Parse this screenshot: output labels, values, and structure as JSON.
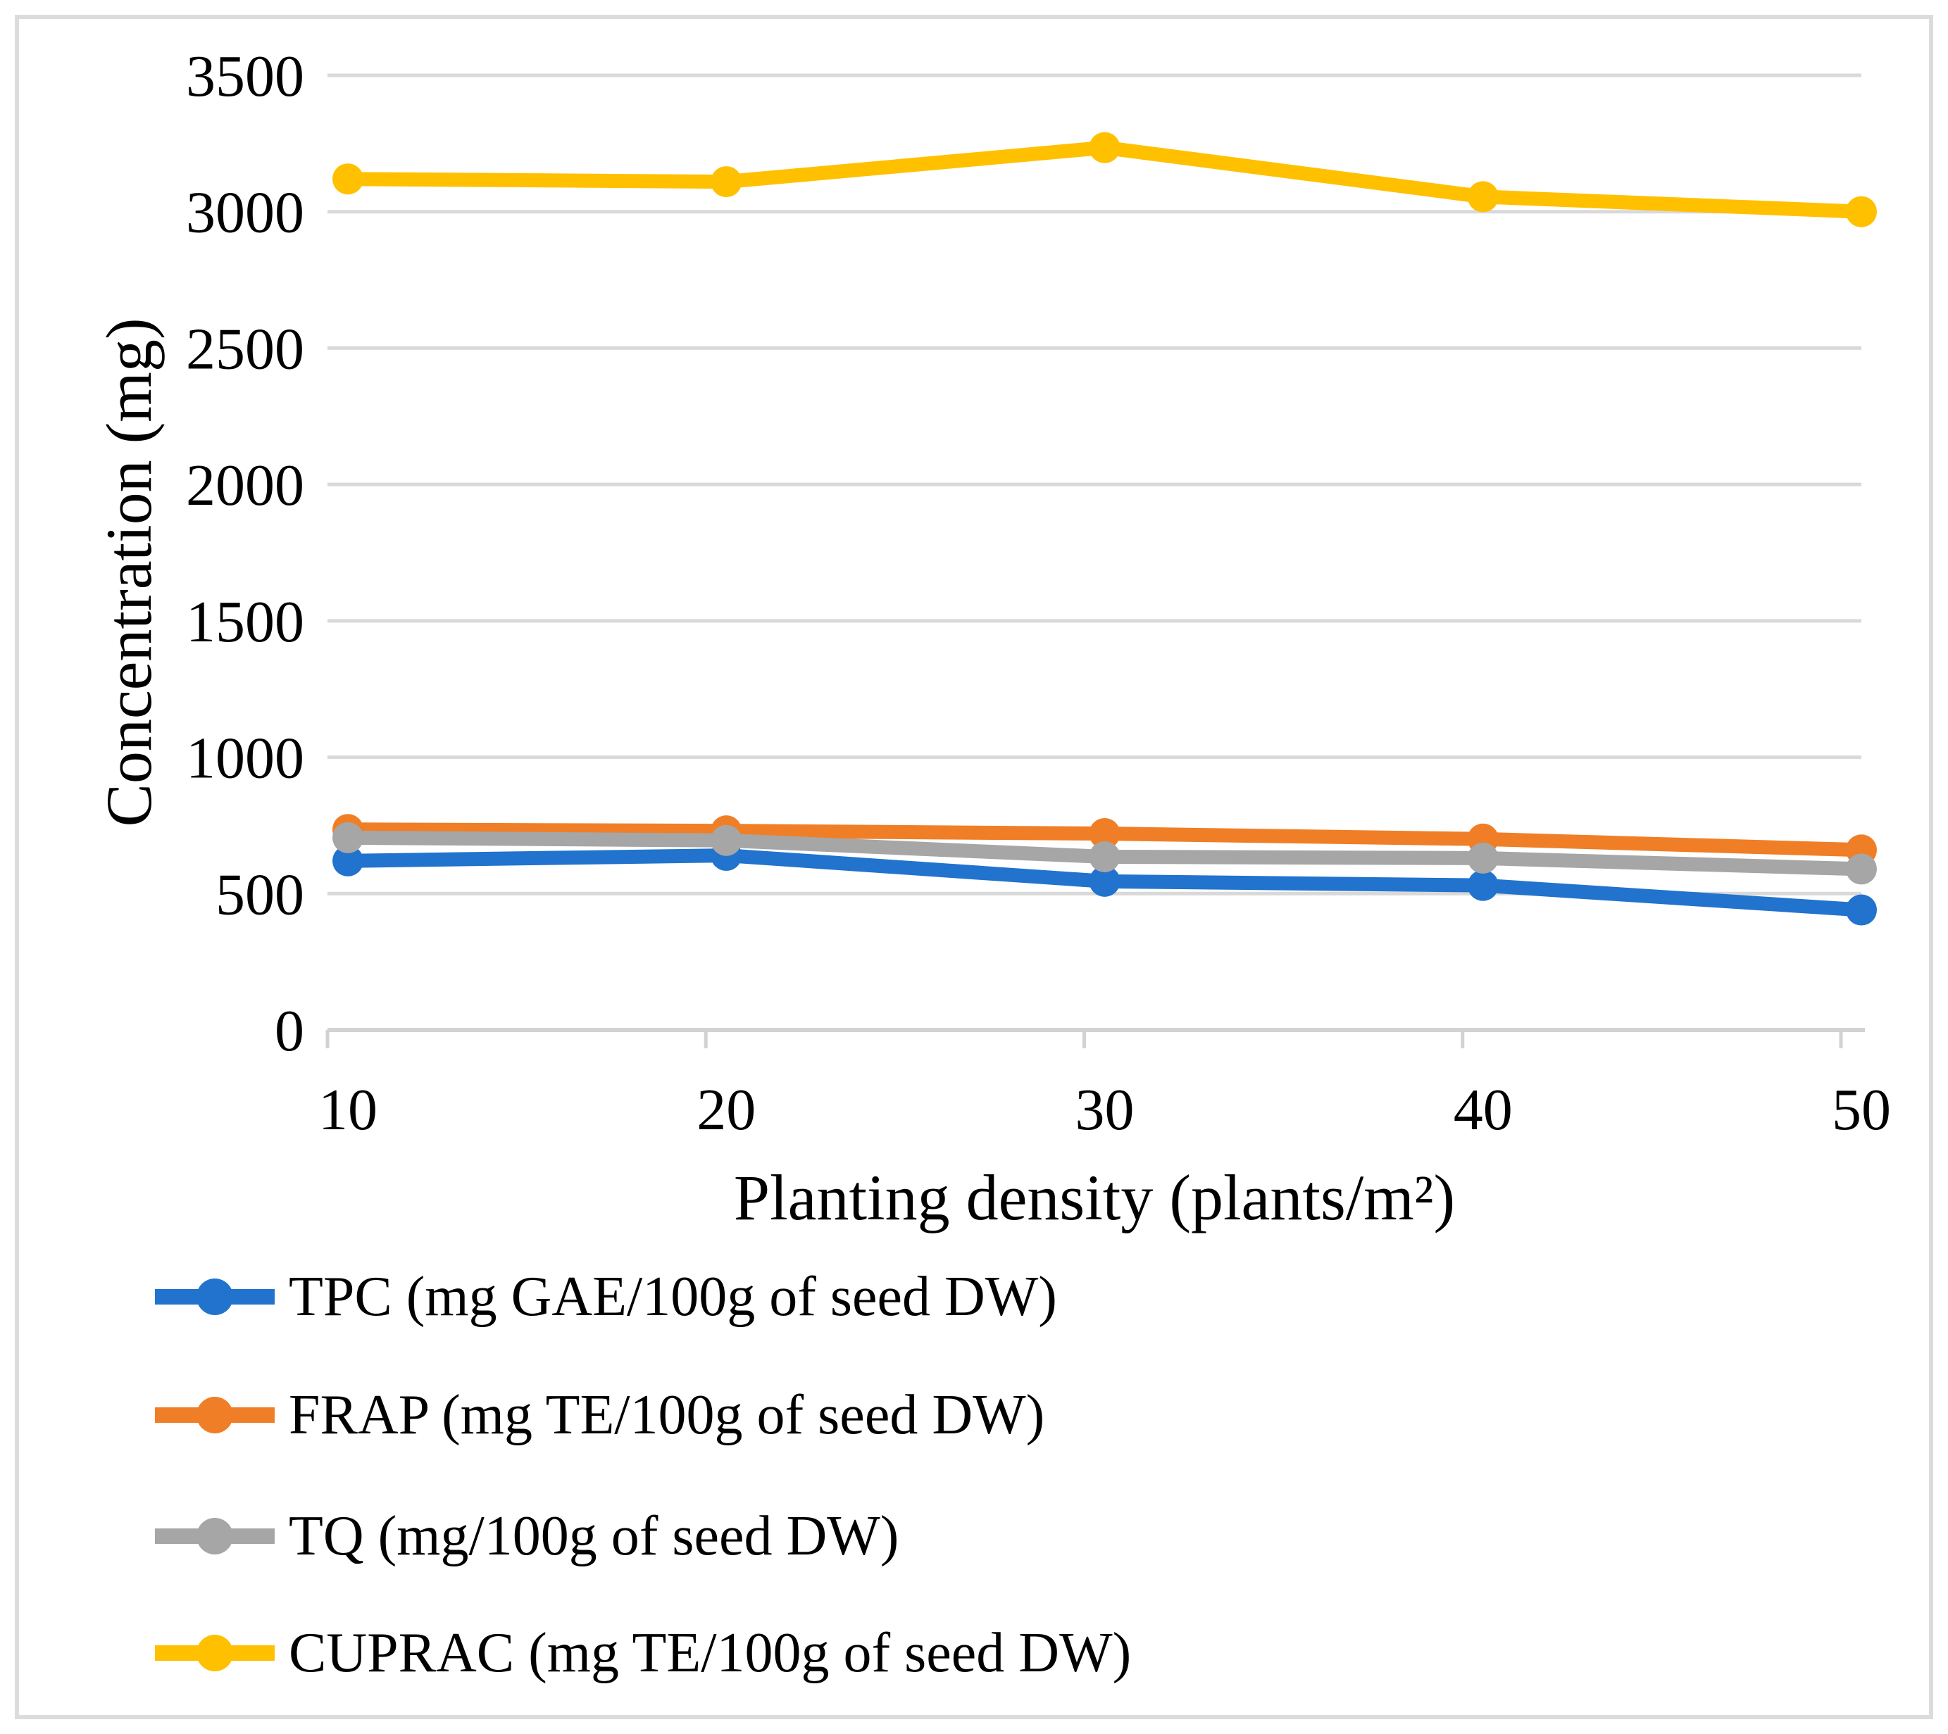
{
  "figure": {
    "background": "#FFFFFF",
    "frame_border_color": "#DCDCDC"
  },
  "chart_data": {
    "type": "line",
    "xlabel": "Planting density (plants/m²)",
    "ylabel": "Concentration (mg)",
    "x": [
      10,
      20,
      30,
      40,
      50
    ],
    "xticks": [
      "10",
      "20",
      "30",
      "40",
      "50"
    ],
    "yticks": [
      "3500",
      "3000",
      "2500",
      "2000",
      "1500",
      "1000",
      "500",
      "0"
    ],
    "ylim": [
      0,
      3500
    ],
    "ytick_step": 500,
    "grid": true,
    "gridline_color": "#D9D9D9",
    "axis_line_color": "#D2D2D2",
    "legend_position": "bottom-left",
    "marker": "circle",
    "series": [
      {
        "name": "TPC",
        "label": "TPC (mg GAE/100g of seed DW)",
        "color": "#2173CD",
        "values": [
          620,
          640,
          545,
          530,
          440
        ]
      },
      {
        "name": "FRAP",
        "label": "FRAP (mg TE/100g of seed DW)",
        "color": "#F07E26",
        "values": [
          735,
          730,
          720,
          700,
          660
        ]
      },
      {
        "name": "TQ",
        "label": "TQ (mg/100g of seed DW)",
        "color": "#A6A6A6",
        "values": [
          705,
          695,
          635,
          630,
          590
        ]
      },
      {
        "name": "CUPRAC",
        "label": "CUPRAC (mg TE/100g of seed DW)",
        "color": "#FFC000",
        "values": [
          3120,
          3110,
          3235,
          3055,
          3000
        ]
      }
    ]
  }
}
